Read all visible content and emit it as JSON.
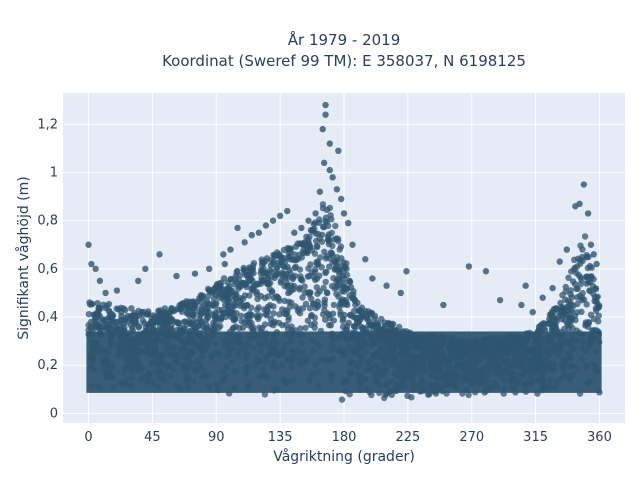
{
  "chart_data": {
    "type": "scatter",
    "title_line1": "År 1979 - 2019",
    "title_line2": "Koordinat (Sweref 99 TM): E 358037, N 6198125",
    "xlabel": "Vågriktning (grader)",
    "ylabel": "Signifikant våghöjd (m)",
    "xlim": [
      -18,
      378
    ],
    "ylim": [
      -0.04,
      1.33
    ],
    "xticks": [
      0,
      45,
      90,
      135,
      180,
      225,
      270,
      315,
      360
    ],
    "xtick_labels": [
      "0",
      "45",
      "90",
      "135",
      "180",
      "225",
      "270",
      "315",
      "360"
    ],
    "yticks": [
      0,
      0.2,
      0.4,
      0.6,
      0.8,
      1.0,
      1.2
    ],
    "ytick_labels": [
      "0",
      "0,2",
      "0,4",
      "0,6",
      "0,8",
      "1",
      "1,2"
    ],
    "grid": true,
    "marker_color": "#2f5570",
    "plot_background": "#e5ecf6",
    "envelope": {
      "direction": [
        0,
        20,
        45,
        75,
        100,
        130,
        150,
        160,
        165,
        170,
        178,
        190,
        225,
        270,
        315,
        335,
        345,
        350,
        360
      ],
      "upper_height": [
        0.47,
        0.45,
        0.42,
        0.48,
        0.58,
        0.66,
        0.72,
        0.8,
        0.88,
        0.86,
        0.7,
        0.45,
        0.34,
        0.3,
        0.34,
        0.5,
        0.72,
        0.74,
        0.45
      ],
      "lower_height": [
        0.07,
        0.07,
        0.07,
        0.07,
        0.07,
        0.07,
        0.07,
        0.07,
        0.06,
        0.05,
        0.04,
        0.05,
        0.06,
        0.07,
        0.07,
        0.07,
        0.07,
        0.07,
        0.07
      ]
    },
    "outliers": [
      {
        "x": 167,
        "y": 1.28
      },
      {
        "x": 167,
        "y": 1.24
      },
      {
        "x": 165,
        "y": 1.18
      },
      {
        "x": 170,
        "y": 1.12
      },
      {
        "x": 176,
        "y": 1.09
      },
      {
        "x": 166,
        "y": 1.04
      },
      {
        "x": 170,
        "y": 1.01
      },
      {
        "x": 172,
        "y": 0.98
      },
      {
        "x": 163,
        "y": 0.92
      },
      {
        "x": 175,
        "y": 0.93
      },
      {
        "x": 178,
        "y": 0.89
      },
      {
        "x": 180,
        "y": 0.83
      },
      {
        "x": 183,
        "y": 0.79
      },
      {
        "x": 186,
        "y": 0.7
      },
      {
        "x": 195,
        "y": 0.64
      },
      {
        "x": 200,
        "y": 0.56
      },
      {
        "x": 210,
        "y": 0.53
      },
      {
        "x": 220,
        "y": 0.5
      },
      {
        "x": 224,
        "y": 0.59
      },
      {
        "x": 250,
        "y": 0.45
      },
      {
        "x": 268,
        "y": 0.61
      },
      {
        "x": 280,
        "y": 0.59
      },
      {
        "x": 290,
        "y": 0.47
      },
      {
        "x": 305,
        "y": 0.45
      },
      {
        "x": 308,
        "y": 0.53
      },
      {
        "x": 313,
        "y": 0.42
      },
      {
        "x": 320,
        "y": 0.48
      },
      {
        "x": 327,
        "y": 0.52
      },
      {
        "x": 332,
        "y": 0.63
      },
      {
        "x": 337,
        "y": 0.68
      },
      {
        "x": 343,
        "y": 0.86
      },
      {
        "x": 346,
        "y": 0.87
      },
      {
        "x": 349,
        "y": 0.95
      },
      {
        "x": 352,
        "y": 0.83
      },
      {
        "x": 354,
        "y": 0.7
      },
      {
        "x": 356,
        "y": 0.66
      },
      {
        "x": 358,
        "y": 0.62
      },
      {
        "x": 0,
        "y": 0.7
      },
      {
        "x": 2,
        "y": 0.62
      },
      {
        "x": 5,
        "y": 0.6
      },
      {
        "x": 8,
        "y": 0.55
      },
      {
        "x": 12,
        "y": 0.5
      },
      {
        "x": 20,
        "y": 0.51
      },
      {
        "x": 35,
        "y": 0.55
      },
      {
        "x": 40,
        "y": 0.6
      },
      {
        "x": 50,
        "y": 0.66
      },
      {
        "x": 62,
        "y": 0.57
      },
      {
        "x": 75,
        "y": 0.58
      },
      {
        "x": 85,
        "y": 0.6
      },
      {
        "x": 95,
        "y": 0.66
      },
      {
        "x": 100,
        "y": 0.68
      },
      {
        "x": 105,
        "y": 0.77
      },
      {
        "x": 110,
        "y": 0.71
      },
      {
        "x": 120,
        "y": 0.75
      },
      {
        "x": 125,
        "y": 0.78
      },
      {
        "x": 130,
        "y": 0.8
      },
      {
        "x": 135,
        "y": 0.82
      },
      {
        "x": 140,
        "y": 0.84
      },
      {
        "x": 145,
        "y": 0.75
      },
      {
        "x": 150,
        "y": 0.77
      },
      {
        "x": 155,
        "y": 0.8
      },
      {
        "x": 160,
        "y": 0.83
      },
      {
        "x": 96,
        "y": 0.62
      },
      {
        "x": 115,
        "y": 0.74
      }
    ]
  }
}
